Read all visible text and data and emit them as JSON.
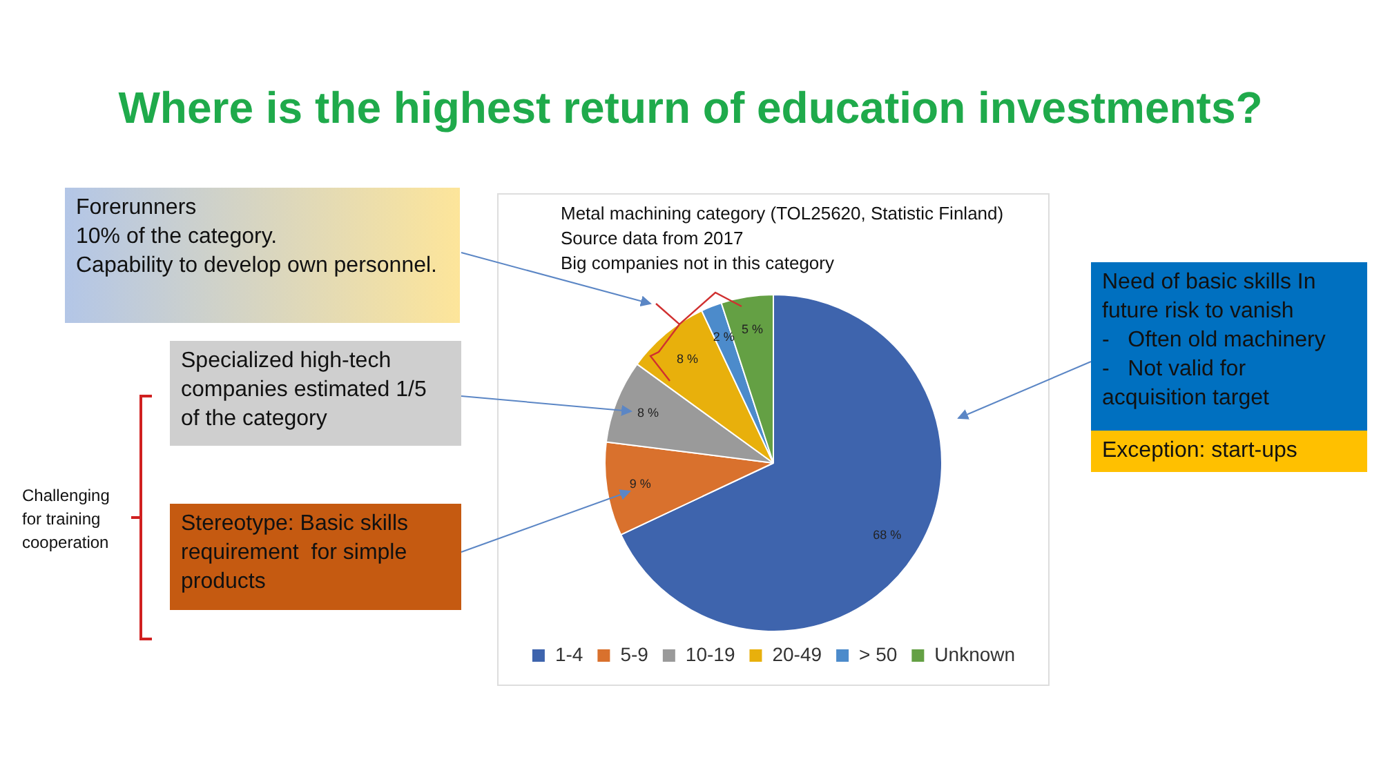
{
  "chart_data": {
    "type": "pie",
    "title": "Where is the highest return of education investments?",
    "categories": [
      "1-4",
      "5-9",
      "10-19",
      "20-49",
      "> 50",
      "Unknown"
    ],
    "values": [
      68,
      9,
      8,
      8,
      2,
      5
    ],
    "colors": [
      "#3e64ad",
      "#d9712d",
      "#9a9a9a",
      "#e8b00c",
      "#4c8bcb",
      "#64a044"
    ],
    "value_labels": [
      "68 %",
      "9 %",
      "8 %",
      "8 %",
      "2 %",
      "5 %"
    ],
    "legend": "bottom",
    "annotations": [
      "Metal machining category (TOL25620, Statistic Finland)\nSource data from 2017\nBig companies not in this category",
      "Forerunners\n10% of the category.\nCapability to develop own personnel.",
      "Specialized high-tech companies estimated 1/5 of the category",
      "Stereotype: Basic skills requirement  for simple products",
      "Challenging for training cooperation",
      "Need of basic skills In future risk to vanish\n-   Often old machinery\n-   Not valid for acquisition target",
      "Exception: start-ups"
    ]
  }
}
